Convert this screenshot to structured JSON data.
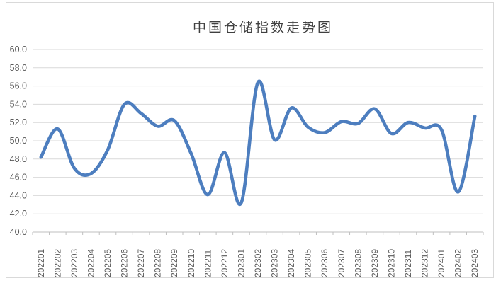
{
  "window": {
    "background": "#ffffff",
    "frame_border_color": "#d9d9d9"
  },
  "chart_data": {
    "type": "line",
    "title": "中国仓储指数走势图",
    "xlabel": "",
    "ylabel": "",
    "categories": [
      "202201",
      "202202",
      "202203",
      "202204",
      "202205",
      "202206",
      "202207",
      "202208",
      "202209",
      "202210",
      "202211",
      "202212",
      "202301",
      "202302",
      "202303",
      "202304",
      "202305",
      "202306",
      "202307",
      "202308",
      "202309",
      "202310",
      "202311",
      "202312",
      "202401",
      "202402",
      "202403"
    ],
    "values": [
      48.2,
      51.3,
      47.0,
      46.4,
      49.0,
      54.0,
      53.0,
      51.6,
      52.2,
      48.6,
      44.1,
      48.7,
      43.2,
      56.4,
      50.1,
      53.6,
      51.5,
      50.9,
      52.1,
      51.9,
      53.5,
      50.8,
      52.0,
      51.4,
      51.2,
      44.4,
      52.7
    ],
    "ylim": [
      40.0,
      60.0
    ],
    "ytick_step": 2.0,
    "ytick_labels": [
      "60.0",
      "58.0",
      "56.0",
      "54.0",
      "52.0",
      "50.0",
      "48.0",
      "46.0",
      "44.0",
      "42.0",
      "40.0"
    ],
    "grid": true,
    "legend": "none",
    "smooth": true,
    "line_color": "#4d7ebf",
    "gridline_color": "#d9d9d9",
    "axis_color": "#bfbfbf",
    "label_color": "#595959",
    "title_color": "#3f3f3f"
  }
}
